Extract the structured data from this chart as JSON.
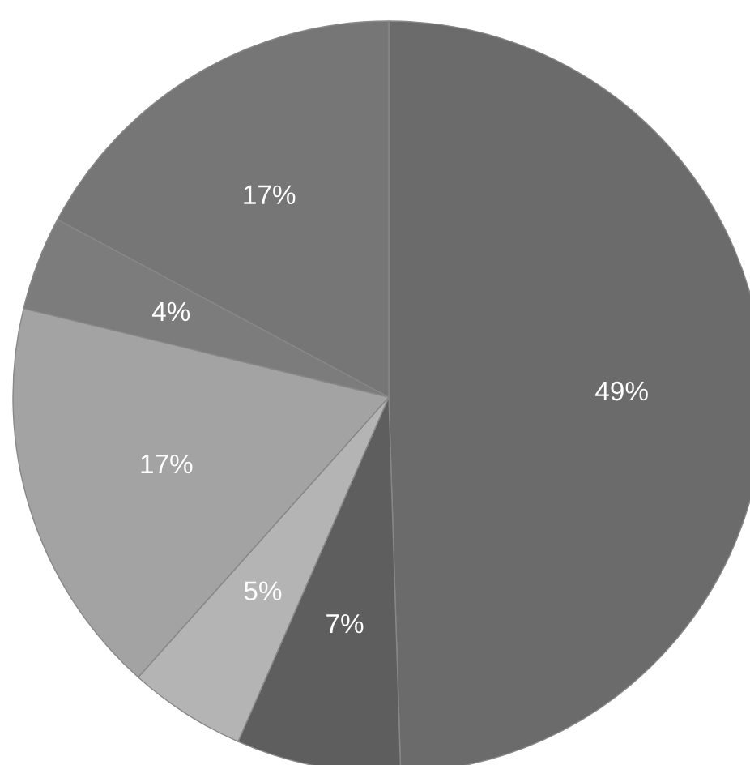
{
  "chart_data": {
    "type": "pie",
    "categories": [
      null,
      null,
      null,
      null,
      null,
      null
    ],
    "values": [
      49,
      7,
      5,
      17,
      4,
      17
    ],
    "colors": [
      "#6b6b6b",
      "#5e5e5e",
      "#b4b4b4",
      "#a3a3a3",
      "#7c7c7c",
      "#767676"
    ],
    "value_labels": [
      "49%",
      "7%",
      "5%",
      "17%",
      "4%",
      "17%"
    ]
  }
}
